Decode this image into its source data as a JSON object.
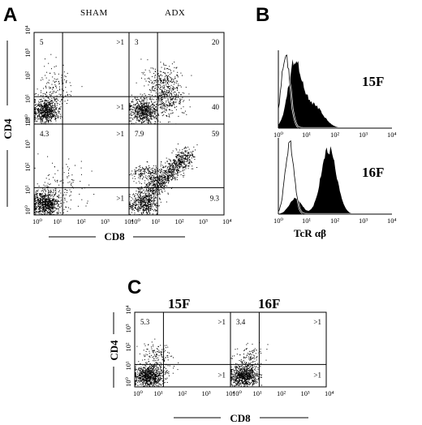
{
  "panels": {
    "A": "A",
    "B": "B",
    "C": "C"
  },
  "chart_data": [
    {
      "panel": "A",
      "type": "scatter",
      "title": "",
      "xlabel": "CD8",
      "ylabel": "CD4",
      "x_scale": "log",
      "y_scale": "log",
      "xlim": [
        1,
        10000
      ],
      "ylim": [
        1,
        10000
      ],
      "x_ticks": [
        "10⁰",
        "10¹",
        "10²",
        "10³",
        "10⁴"
      ],
      "y_ticks": [
        "10⁰",
        "10¹",
        "10²",
        "10³",
        "10⁴"
      ],
      "column_labels": [
        "SHAM",
        "ADX"
      ],
      "plots": [
        {
          "column": "SHAM",
          "row": 1,
          "quadrants": {
            "ul": "5",
            "ur": ">1",
            "lr": ">1"
          }
        },
        {
          "column": "ADX",
          "row": 1,
          "quadrants": {
            "ul": "3",
            "ur": "20",
            "lr": "40"
          }
        },
        {
          "column": "SHAM",
          "row": 2,
          "quadrants": {
            "ul": "4.3",
            "ur": ">1",
            "lr": ">1"
          }
        },
        {
          "column": "ADX",
          "row": 2,
          "quadrants": {
            "ul": "7.9",
            "ur": "59",
            "lr": "9.3"
          }
        }
      ]
    },
    {
      "panel": "B",
      "type": "area",
      "title": "",
      "xlabel": "TcR αβ",
      "x_scale": "log",
      "xlim": [
        1,
        10000
      ],
      "x_ticks": [
        "10⁰",
        "10¹",
        "10²",
        "10³",
        "10⁴"
      ],
      "histograms": [
        {
          "label": "15F",
          "control_peak": 1.8,
          "stained_peak": 4
        },
        {
          "label": "16F",
          "control_peak": 2.5,
          "stained_peak": 60
        }
      ]
    },
    {
      "panel": "C",
      "type": "scatter",
      "title": "",
      "xlabel": "CD8",
      "ylabel": "CD4",
      "x_scale": "log",
      "y_scale": "log",
      "xlim": [
        1,
        10000
      ],
      "ylim": [
        1,
        10000
      ],
      "x_ticks": [
        "10⁰",
        "10¹",
        "10²",
        "10³",
        "10⁴"
      ],
      "y_ticks": [
        "10⁰",
        "10¹",
        "10²",
        "10³",
        "10⁴"
      ],
      "plots": [
        {
          "label": "15F",
          "quadrants": {
            "ul": "5.3",
            "ur": ">1",
            "lr": ">1"
          }
        },
        {
          "label": "16F",
          "quadrants": {
            "ul": "3.4",
            "ur": ">1",
            "lr": ">1"
          }
        }
      ]
    }
  ]
}
